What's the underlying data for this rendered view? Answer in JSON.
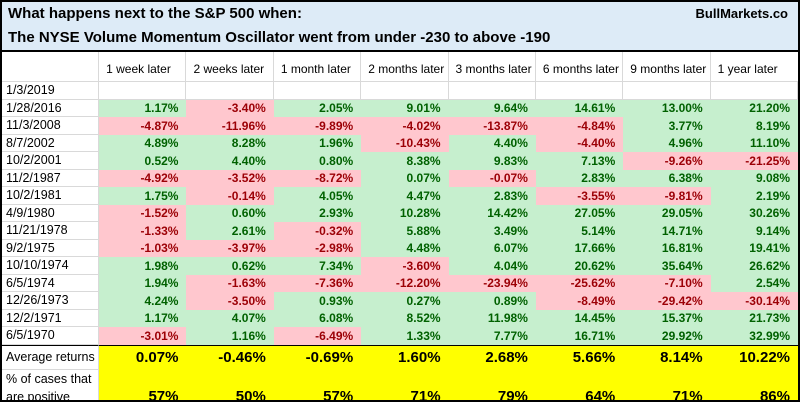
{
  "header": {
    "title_line1": "What happens next to the S&P 500 when:",
    "title_line2": "The NYSE Volume Momentum Oscillator went from under -230 to above -190",
    "brand": "BullMarkets.co"
  },
  "colors": {
    "title_bg": "#ddebf7",
    "positive_bg": "#c6efce",
    "positive_text": "#006100",
    "negative_bg": "#ffc7ce",
    "negative_text": "#9c0006",
    "summary_bg": "#ffff00",
    "gridline": "#d9d9d9"
  },
  "table": {
    "columns": [
      "1 week later",
      "2 weeks later",
      "1 month later",
      "2 months later",
      "3 months later",
      "6 months later",
      "9 months later",
      "1 year later"
    ],
    "rows": [
      {
        "date": "1/3/2019",
        "values": [
          "",
          "",
          "",
          "",
          "",
          "",
          "",
          ""
        ]
      },
      {
        "date": "1/28/2016",
        "values": [
          "1.17%",
          "-3.40%",
          "2.05%",
          "9.01%",
          "9.64%",
          "14.61%",
          "13.00%",
          "21.20%"
        ]
      },
      {
        "date": "11/3/2008",
        "values": [
          "-4.87%",
          "-11.96%",
          "-9.89%",
          "-4.02%",
          "-13.87%",
          "-4.84%",
          "3.77%",
          "8.19%"
        ]
      },
      {
        "date": "8/7/2002",
        "values": [
          "4.89%",
          "8.28%",
          "1.96%",
          "-10.43%",
          "4.40%",
          "-4.40%",
          "4.96%",
          "11.10%"
        ]
      },
      {
        "date": "10/2/2001",
        "values": [
          "0.52%",
          "4.40%",
          "0.80%",
          "8.38%",
          "9.83%",
          "7.13%",
          "-9.26%",
          "-21.25%"
        ]
      },
      {
        "date": "11/2/1987",
        "values": [
          "-4.92%",
          "-3.52%",
          "-8.72%",
          "0.07%",
          "-0.07%",
          "2.83%",
          "6.38%",
          "9.08%"
        ]
      },
      {
        "date": "10/2/1981",
        "values": [
          "1.75%",
          "-0.14%",
          "4.05%",
          "4.47%",
          "2.83%",
          "-3.55%",
          "-9.81%",
          "2.19%"
        ]
      },
      {
        "date": "4/9/1980",
        "values": [
          "-1.52%",
          "0.60%",
          "2.93%",
          "10.28%",
          "14.42%",
          "27.05%",
          "29.05%",
          "30.26%"
        ]
      },
      {
        "date": "11/21/1978",
        "values": [
          "-1.33%",
          "2.61%",
          "-0.32%",
          "5.88%",
          "3.49%",
          "5.14%",
          "14.71%",
          "9.14%"
        ]
      },
      {
        "date": "9/2/1975",
        "values": [
          "-1.03%",
          "-3.97%",
          "-2.98%",
          "4.48%",
          "6.07%",
          "17.66%",
          "16.81%",
          "19.41%"
        ]
      },
      {
        "date": "10/10/1974",
        "values": [
          "1.98%",
          "0.62%",
          "7.34%",
          "-3.60%",
          "4.04%",
          "20.62%",
          "35.64%",
          "26.62%"
        ]
      },
      {
        "date": "6/5/1974",
        "values": [
          "1.94%",
          "-1.63%",
          "-7.36%",
          "-12.20%",
          "-23.94%",
          "-25.62%",
          "-7.10%",
          "2.54%"
        ]
      },
      {
        "date": "12/26/1973",
        "values": [
          "4.24%",
          "-3.50%",
          "0.93%",
          "0.27%",
          "0.89%",
          "-8.49%",
          "-29.42%",
          "-30.14%"
        ]
      },
      {
        "date": "12/2/1971",
        "values": [
          "1.17%",
          "4.07%",
          "6.08%",
          "8.52%",
          "11.98%",
          "14.45%",
          "15.37%",
          "21.73%"
        ]
      },
      {
        "date": "6/5/1970",
        "values": [
          "-3.01%",
          "1.16%",
          "-6.49%",
          "1.33%",
          "7.77%",
          "16.71%",
          "29.92%",
          "32.99%"
        ]
      }
    ],
    "summary": {
      "average_label": "Average returns",
      "average_values": [
        "0.07%",
        "-0.46%",
        "-0.69%",
        "1.60%",
        "2.68%",
        "5.66%",
        "8.14%",
        "10.22%"
      ],
      "percent_label_line1": "% of cases that",
      "percent_label_line2": "are positive",
      "percent_values": [
        "57%",
        "50%",
        "57%",
        "71%",
        "79%",
        "64%",
        "71%",
        "86%"
      ]
    }
  }
}
